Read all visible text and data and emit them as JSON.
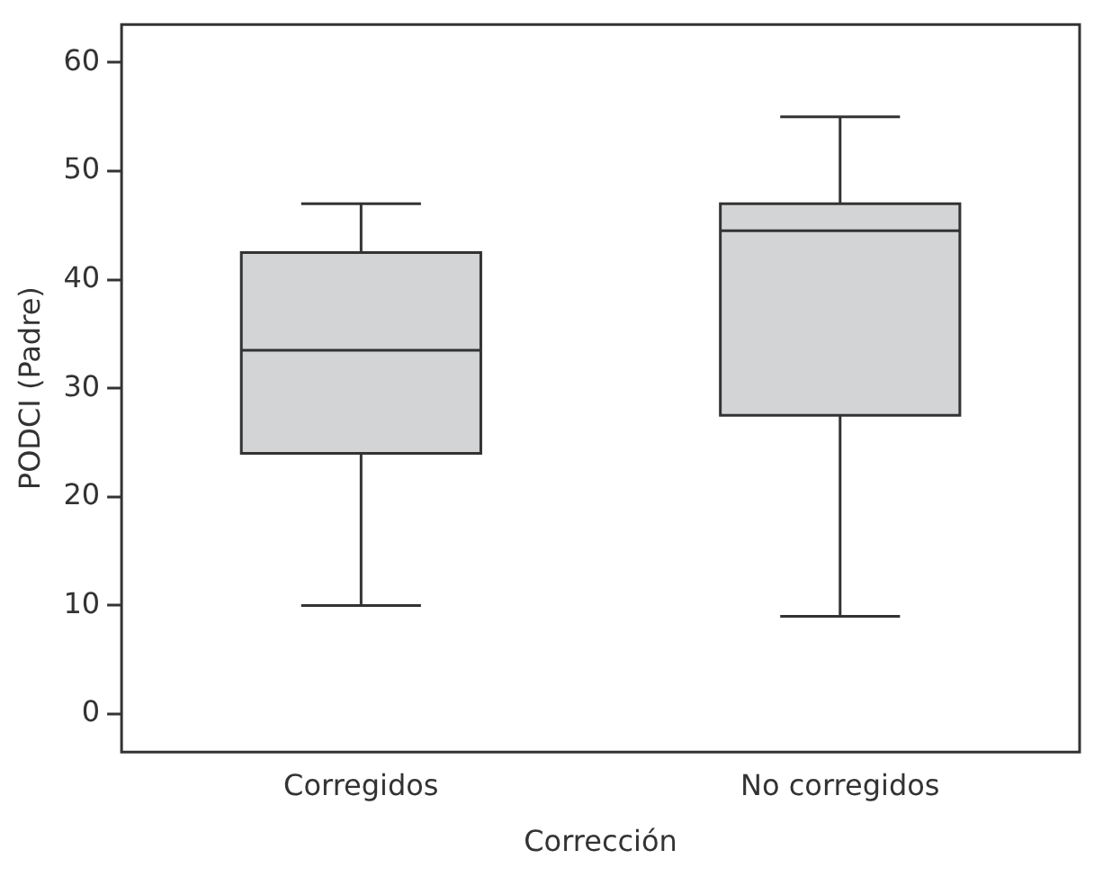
{
  "chart_data": {
    "type": "box",
    "xlabel": "Corrección",
    "ylabel": "PODCI (Padre)",
    "categories": [
      "Corregidos",
      "No corregidos"
    ],
    "color": "#d3d4d6",
    "boxes": [
      {
        "low": 10,
        "q1": 24,
        "median": 33.5,
        "q3": 42.5,
        "high": 47
      },
      {
        "low": 9,
        "q1": 27.5,
        "median": 44.5,
        "q3": 47,
        "high": 55
      }
    ],
    "ylim": [
      -3.5,
      63.5
    ],
    "yticks": [
      0,
      10,
      20,
      30,
      40,
      50,
      60
    ],
    "grid": false,
    "legend": false
  }
}
